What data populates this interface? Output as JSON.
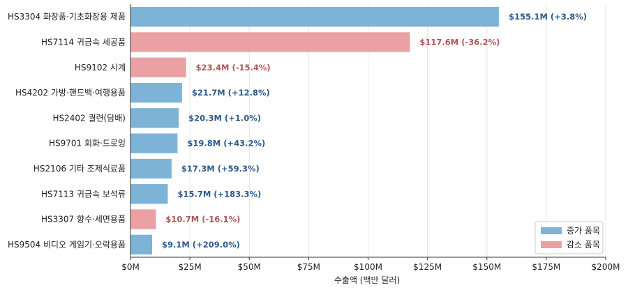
{
  "chart_data": {
    "type": "bar",
    "orientation": "horizontal",
    "categories": [
      "HS3304 화장품·기초화장용 제품",
      "HS7114 귀금속 세공품",
      "HS9102 시계",
      "HS4202 가방·핸드백·여행용품",
      "HS2402 궐련(담배)",
      "HS9701 회화·드로잉",
      "HS2106 기타 조제식료품",
      "HS7113 귀금속 보석류",
      "HS3307 향수·세면용품",
      "HS9504 비디오 게임기·오락용품"
    ],
    "values": [
      155.1,
      117.6,
      23.4,
      21.7,
      20.3,
      19.8,
      17.3,
      15.7,
      10.7,
      9.1
    ],
    "value_labels": [
      "$155.1M  (+3.8%)",
      "$117.6M  (-36.2%)",
      "$23.4M  (-15.4%)",
      "$21.7M  (+12.8%)",
      "$20.3M  (+1.0%)",
      "$19.8M  (+43.2%)",
      "$17.3M  (+59.3%)",
      "$15.7M  (+183.3%)",
      "$10.7M  (-16.1%)",
      "$9.1M  (+209.0%)"
    ],
    "trend": [
      "increase",
      "decrease",
      "decrease",
      "increase",
      "increase",
      "increase",
      "increase",
      "increase",
      "decrease",
      "increase"
    ],
    "xlabel": "수출액 (백만 달러)",
    "xlim": [
      0,
      200
    ],
    "xticks": [
      0,
      25,
      50,
      75,
      100,
      125,
      150,
      175,
      200
    ],
    "xtick_labels": [
      "$0M",
      "$25M",
      "$50M",
      "$75M",
      "$100M",
      "$125M",
      "$150M",
      "$175M",
      "$200M"
    ],
    "grid": "vertical",
    "legend": {
      "position": "bottom-right",
      "entries": [
        {
          "key": "increase",
          "label": "증가 품목"
        },
        {
          "key": "decrease",
          "label": "감소 품목"
        }
      ]
    },
    "colors": {
      "increase_bar": "#7eb3d8",
      "decrease_bar": "#eba1a3",
      "increase_text": "#2c5a8a",
      "decrease_text": "#b05555"
    }
  }
}
